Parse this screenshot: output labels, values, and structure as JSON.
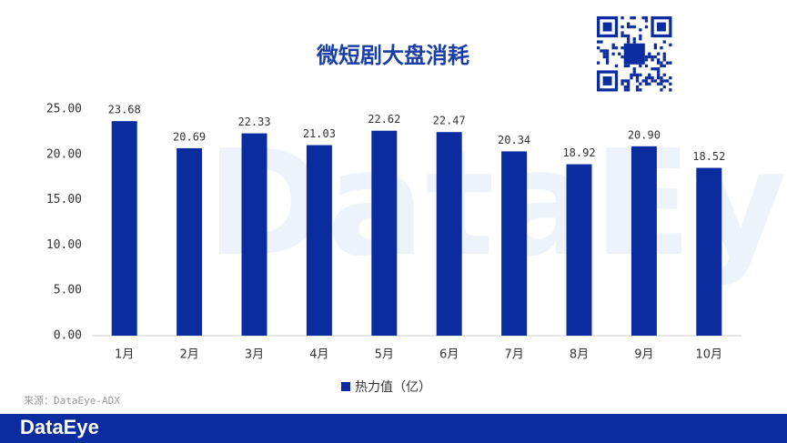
{
  "chart_data": {
    "type": "bar",
    "title": "微短剧大盘消耗",
    "categories": [
      "1月",
      "2月",
      "3月",
      "4月",
      "5月",
      "6月",
      "7月",
      "8月",
      "9月",
      "10月"
    ],
    "series": [
      {
        "name": "热力值（亿）",
        "color": "#0b2c9e",
        "values": [
          23.68,
          20.69,
          22.33,
          21.03,
          22.62,
          22.47,
          20.34,
          18.92,
          20.9,
          18.52
        ],
        "value_labels": [
          "23.68",
          "20.69",
          "22.33",
          "21.03",
          "22.62",
          "22.47",
          "20.34",
          "18.92",
          "20.90",
          "18.52"
        ]
      }
    ],
    "ylim": [
      0,
      25
    ],
    "yticks": [
      {
        "value": 0,
        "label": "0.00"
      },
      {
        "value": 5,
        "label": "5.00"
      },
      {
        "value": 10,
        "label": "10.00"
      },
      {
        "value": 15,
        "label": "15.00"
      },
      {
        "value": 20,
        "label": "20.00"
      },
      {
        "value": 25,
        "label": "25.00"
      }
    ],
    "grid": false,
    "legend": "bottom",
    "source": "来源：DataEye-ADX",
    "watermark": "DataEye",
    "brand": "DataEye"
  }
}
